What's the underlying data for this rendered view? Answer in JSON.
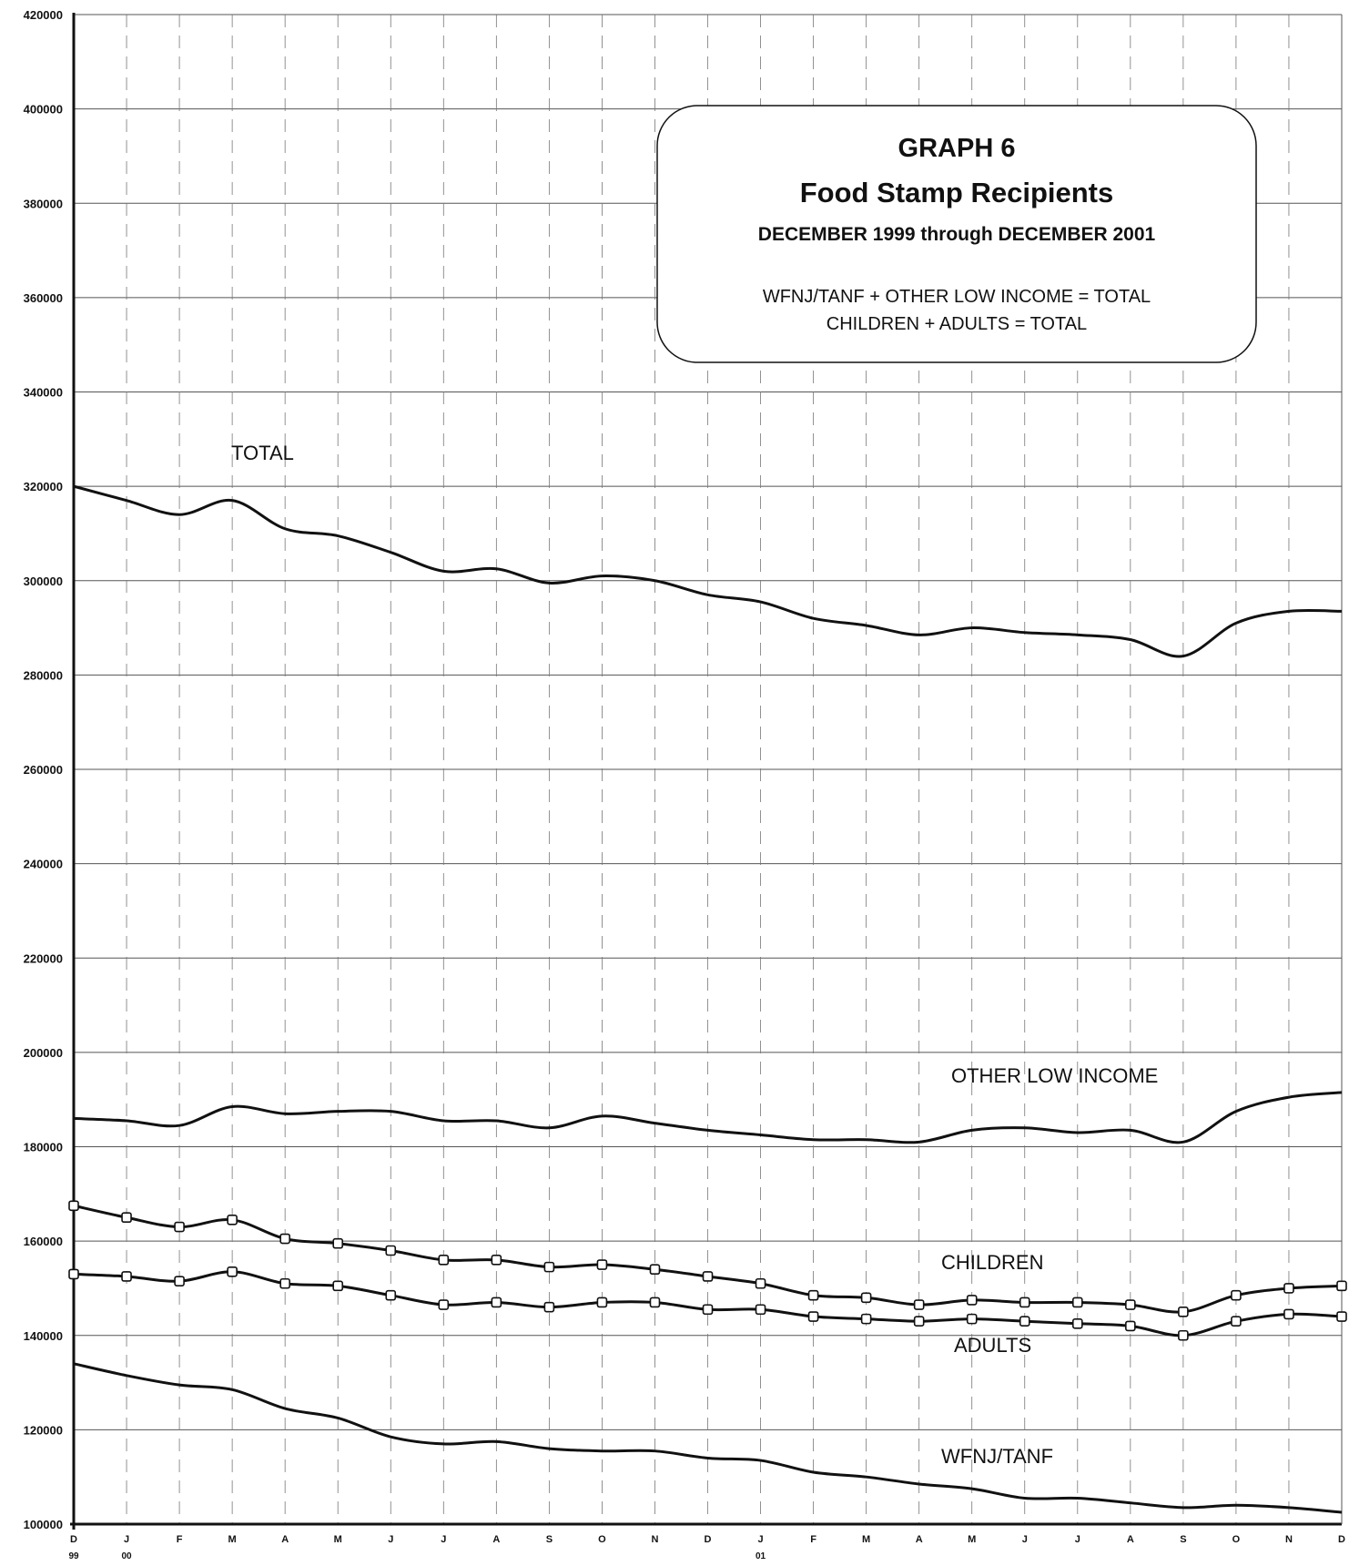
{
  "chart_data": {
    "type": "line",
    "title": "GRAPH 6",
    "subtitle": "Food Stamp Recipients",
    "date_range": "DECEMBER 1999  through DECEMBER 2001",
    "notes": [
      "WFNJ/TANF + OTHER LOW INCOME = TOTAL",
      "CHILDREN  + ADULTS = TOTAL"
    ],
    "xlabel": "",
    "ylabel": "",
    "ylim": [
      100000,
      420000
    ],
    "y_ticks": [
      "100000",
      "120000",
      "140000",
      "160000",
      "180000",
      "200000",
      "220000",
      "240000",
      "260000",
      "280000",
      "300000",
      "320000",
      "340000",
      "360000",
      "380000",
      "400000",
      "420000"
    ],
    "categories": [
      "D",
      "J",
      "F",
      "M",
      "A",
      "M",
      "J",
      "J",
      "A",
      "S",
      "O",
      "N",
      "D",
      "J",
      "F",
      "M",
      "A",
      "M",
      "J",
      "J",
      "A",
      "S",
      "O",
      "N",
      "D"
    ],
    "year_labels": [
      {
        "index": 0,
        "text": "99"
      },
      {
        "index": 1,
        "text": "00"
      },
      {
        "index": 13,
        "text": "01"
      }
    ],
    "grid": true,
    "legend": "none (series labeled directly on chart)",
    "series": [
      {
        "name": "TOTAL",
        "markers": false,
        "values": [
          320000,
          317000,
          314000,
          317000,
          311000,
          309500,
          306000,
          302000,
          302500,
          299500,
          301000,
          300000,
          297000,
          295500,
          292000,
          290500,
          288500,
          290000,
          289000,
          288500,
          287500,
          284000,
          291000,
          293500,
          293500
        ]
      },
      {
        "name": "OTHER LOW INCOME",
        "markers": false,
        "values": [
          186000,
          185500,
          184500,
          188500,
          187000,
          187500,
          187500,
          185500,
          185500,
          184000,
          186500,
          185000,
          183500,
          182500,
          181500,
          181500,
          181000,
          183500,
          184000,
          183000,
          183500,
          181000,
          187500,
          190500,
          191500
        ]
      },
      {
        "name": "CHILDREN",
        "markers": true,
        "values": [
          167500,
          165000,
          163000,
          164500,
          160500,
          159500,
          158000,
          156000,
          156000,
          154500,
          155000,
          154000,
          152500,
          151000,
          148500,
          148000,
          146500,
          147500,
          147000,
          147000,
          146500,
          145000,
          148500,
          150000,
          150500
        ]
      },
      {
        "name": "ADULTS",
        "markers": true,
        "values": [
          153000,
          152500,
          151500,
          153500,
          151000,
          150500,
          148500,
          146500,
          147000,
          146000,
          147000,
          147000,
          145500,
          145500,
          144000,
          143500,
          143000,
          143500,
          143000,
          142500,
          142000,
          140000,
          143000,
          144500,
          144000
        ]
      },
      {
        "name": "WFNJ/TANF",
        "markers": false,
        "values": [
          134000,
          131500,
          129500,
          128500,
          124500,
          122500,
          118500,
          117000,
          117500,
          116000,
          115500,
          115500,
          114000,
          113500,
          111000,
          110000,
          108500,
          107500,
          105500,
          105500,
          104500,
          103500,
          104000,
          103500,
          102500
        ]
      }
    ]
  }
}
